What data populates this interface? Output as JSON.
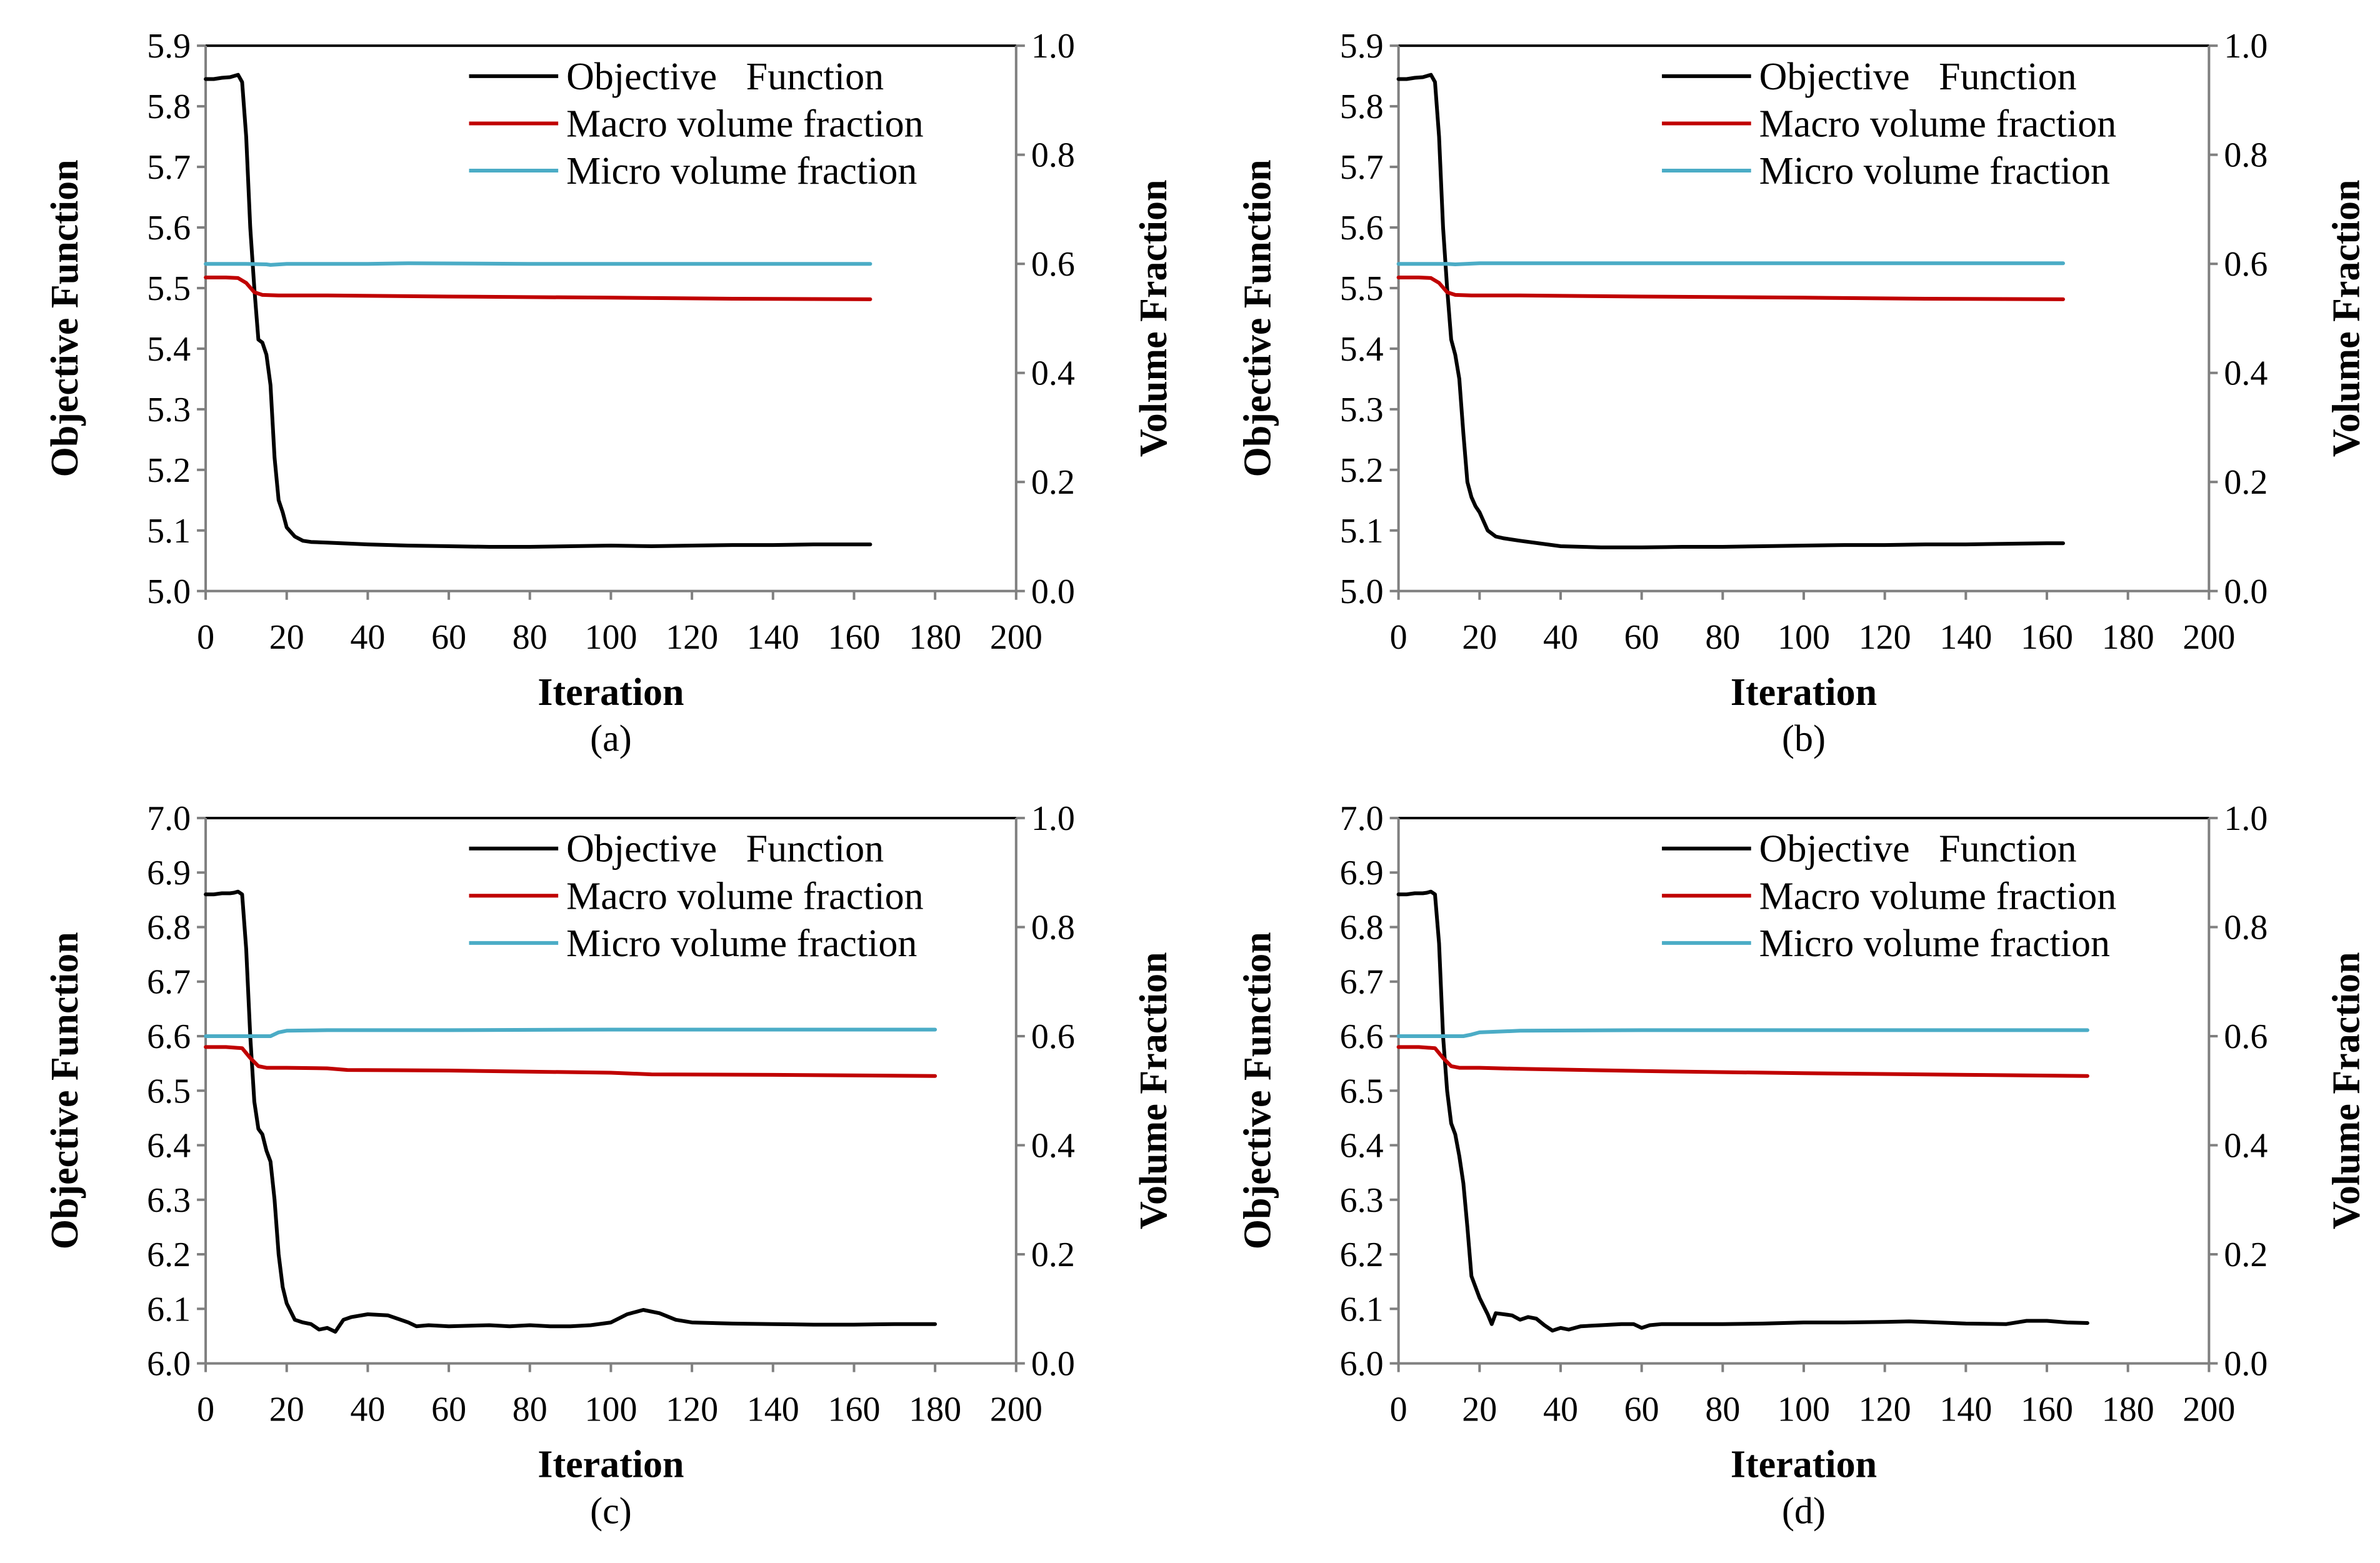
{
  "chart_data": [
    {
      "type": "line",
      "caption": "(a)",
      "xlabel": "Iteration",
      "ylabel": "Objective Function",
      "y2label": "Volume Fraction",
      "xlim": [
        0,
        200
      ],
      "ylim": [
        5.0,
        5.9
      ],
      "y2lim": [
        0.0,
        1.0
      ],
      "x_ticks": [
        "0",
        "20",
        "40",
        "60",
        "80",
        "100",
        "120",
        "140",
        "160",
        "180",
        "200"
      ],
      "y_ticks": [
        "5.0",
        "5.1",
        "5.2",
        "5.3",
        "5.4",
        "5.5",
        "5.6",
        "5.7",
        "5.8",
        "5.9"
      ],
      "y2_ticks": [
        "0.0",
        "0.2",
        "0.4",
        "0.6",
        "0.8",
        "1.0"
      ],
      "grid": false,
      "legend_position": "top-right",
      "series": [
        {
          "name": "Objective   Function",
          "color": "#000000",
          "axis": "left",
          "x": [
            0,
            2,
            4,
            6,
            7,
            8,
            9,
            10,
            11,
            12,
            13,
            14,
            15,
            16,
            17,
            18,
            19,
            20,
            22,
            24,
            26,
            30,
            40,
            50,
            60,
            70,
            80,
            90,
            100,
            110,
            120,
            130,
            140,
            150,
            160,
            164
          ],
          "y": [
            5.845,
            5.845,
            5.847,
            5.848,
            5.85,
            5.852,
            5.84,
            5.75,
            5.6,
            5.5,
            5.415,
            5.41,
            5.39,
            5.34,
            5.22,
            5.15,
            5.13,
            5.105,
            5.09,
            5.083,
            5.081,
            5.08,
            5.077,
            5.075,
            5.074,
            5.073,
            5.073,
            5.074,
            5.075,
            5.074,
            5.075,
            5.076,
            5.076,
            5.077,
            5.077,
            5.077
          ]
        },
        {
          "name": "Macro volume fraction",
          "color": "#c00000",
          "axis": "right",
          "x": [
            0,
            5,
            8,
            10,
            12,
            14,
            18,
            30,
            60,
            100,
            130,
            164
          ],
          "y": [
            0.575,
            0.575,
            0.574,
            0.565,
            0.548,
            0.543,
            0.542,
            0.542,
            0.54,
            0.538,
            0.536,
            0.535
          ]
        },
        {
          "name": "Micro volume fraction",
          "color": "#4bacc6",
          "axis": "right",
          "x": [
            0,
            10,
            15,
            16,
            20,
            40,
            50,
            80,
            120,
            164
          ],
          "y": [
            0.6,
            0.6,
            0.599,
            0.598,
            0.6,
            0.6,
            0.601,
            0.6,
            0.6,
            0.6
          ]
        }
      ]
    },
    {
      "type": "line",
      "caption": "(b)",
      "xlabel": "Iteration",
      "ylabel": "Objective Function",
      "y2label": "Volume Fraction",
      "xlim": [
        0,
        200
      ],
      "ylim": [
        5.0,
        5.9
      ],
      "y2lim": [
        0.0,
        1.0
      ],
      "x_ticks": [
        "0",
        "20",
        "40",
        "60",
        "80",
        "100",
        "120",
        "140",
        "160",
        "180",
        "200"
      ],
      "y_ticks": [
        "5.0",
        "5.1",
        "5.2",
        "5.3",
        "5.4",
        "5.5",
        "5.6",
        "5.7",
        "5.8",
        "5.9"
      ],
      "y2_ticks": [
        "0.0",
        "0.2",
        "0.4",
        "0.6",
        "0.8",
        "1.0"
      ],
      "grid": false,
      "legend_position": "top-right",
      "series": [
        {
          "name": "Objective   Function",
          "color": "#000000",
          "axis": "left",
          "x": [
            0,
            2,
            4,
            6,
            7,
            8,
            9,
            10,
            11,
            12,
            13,
            14,
            15,
            16,
            17,
            18,
            19,
            20,
            22,
            24,
            26,
            30,
            40,
            50,
            60,
            70,
            80,
            90,
            100,
            110,
            120,
            130,
            140,
            150,
            160,
            164
          ],
          "y": [
            5.845,
            5.845,
            5.847,
            5.848,
            5.85,
            5.852,
            5.84,
            5.75,
            5.6,
            5.5,
            5.415,
            5.39,
            5.35,
            5.26,
            5.18,
            5.155,
            5.14,
            5.13,
            5.1,
            5.09,
            5.087,
            5.083,
            5.074,
            5.072,
            5.072,
            5.073,
            5.073,
            5.074,
            5.075,
            5.076,
            5.076,
            5.077,
            5.077,
            5.078,
            5.079,
            5.079
          ]
        },
        {
          "name": "Macro volume fraction",
          "color": "#c00000",
          "axis": "right",
          "x": [
            0,
            5,
            8,
            10,
            12,
            14,
            18,
            30,
            60,
            100,
            130,
            164
          ],
          "y": [
            0.575,
            0.575,
            0.574,
            0.565,
            0.548,
            0.543,
            0.542,
            0.542,
            0.54,
            0.538,
            0.536,
            0.535
          ]
        },
        {
          "name": "Micro volume fraction",
          "color": "#4bacc6",
          "axis": "right",
          "x": [
            0,
            10,
            12,
            14,
            20,
            40,
            80,
            120,
            164
          ],
          "y": [
            0.6,
            0.6,
            0.6,
            0.599,
            0.601,
            0.601,
            0.601,
            0.601,
            0.601
          ]
        }
      ]
    },
    {
      "type": "line",
      "caption": "(c)",
      "xlabel": "Iteration",
      "ylabel": "Objective Function",
      "y2label": "Volume Fraction",
      "xlim": [
        0,
        200
      ],
      "ylim": [
        6.0,
        7.0
      ],
      "y2lim": [
        0.0,
        1.0
      ],
      "x_ticks": [
        "0",
        "20",
        "40",
        "60",
        "80",
        "100",
        "120",
        "140",
        "160",
        "180",
        "200"
      ],
      "y_ticks": [
        "6.0",
        "6.1",
        "6.2",
        "6.3",
        "6.4",
        "6.5",
        "6.6",
        "6.7",
        "6.8",
        "6.9",
        "7.0"
      ],
      "y2_ticks": [
        "0.0",
        "0.2",
        "0.4",
        "0.6",
        "0.8",
        "1.0"
      ],
      "grid": false,
      "legend_position": "top-right",
      "series": [
        {
          "name": "Objective   Function",
          "color": "#000000",
          "axis": "left",
          "x": [
            0,
            2,
            4,
            6,
            7,
            8,
            9,
            10,
            11,
            12,
            13,
            14,
            15,
            16,
            17,
            18,
            19,
            20,
            22,
            24,
            26,
            28,
            30,
            32,
            34,
            36,
            40,
            45,
            50,
            52,
            55,
            60,
            70,
            75,
            80,
            85,
            90,
            95,
            100,
            104,
            108,
            112,
            116,
            120,
            130,
            140,
            150,
            160,
            170,
            180
          ],
          "y": [
            6.86,
            6.86,
            6.862,
            6.862,
            6.863,
            6.865,
            6.86,
            6.76,
            6.6,
            6.48,
            6.43,
            6.42,
            6.39,
            6.37,
            6.3,
            6.2,
            6.14,
            6.11,
            6.08,
            6.075,
            6.072,
            6.062,
            6.065,
            6.058,
            6.08,
            6.085,
            6.09,
            6.088,
            6.075,
            6.068,
            6.07,
            6.068,
            6.07,
            6.068,
            6.07,
            6.068,
            6.068,
            6.07,
            6.075,
            6.09,
            6.098,
            6.092,
            6.08,
            6.075,
            6.073,
            6.072,
            6.071,
            6.071,
            6.072,
            6.072
          ]
        },
        {
          "name": "Macro volume fraction",
          "color": "#c00000",
          "axis": "right",
          "x": [
            0,
            5,
            9,
            11,
            13,
            15,
            20,
            30,
            35,
            60,
            100,
            110,
            140,
            180
          ],
          "y": [
            0.58,
            0.58,
            0.578,
            0.56,
            0.545,
            0.542,
            0.542,
            0.541,
            0.538,
            0.537,
            0.533,
            0.53,
            0.529,
            0.527
          ]
        },
        {
          "name": "Micro volume fraction",
          "color": "#4bacc6",
          "axis": "right",
          "x": [
            0,
            14,
            16,
            18,
            20,
            30,
            60,
            100,
            140,
            180
          ],
          "y": [
            0.6,
            0.6,
            0.6,
            0.607,
            0.61,
            0.611,
            0.611,
            0.612,
            0.612,
            0.612
          ]
        }
      ]
    },
    {
      "type": "line",
      "caption": "(d)",
      "xlabel": "Iteration",
      "ylabel": "Objective Function",
      "y2label": "Volume Fraction",
      "xlim": [
        0,
        200
      ],
      "ylim": [
        6.0,
        7.0
      ],
      "y2lim": [
        0.0,
        1.0
      ],
      "x_ticks": [
        "0",
        "20",
        "40",
        "60",
        "80",
        "100",
        "120",
        "140",
        "160",
        "180",
        "200"
      ],
      "y_ticks": [
        "6.0",
        "6.1",
        "6.2",
        "6.3",
        "6.4",
        "6.5",
        "6.6",
        "6.7",
        "6.8",
        "6.9",
        "7.0"
      ],
      "y2_ticks": [
        "0.0",
        "0.2",
        "0.4",
        "0.6",
        "0.8",
        "1.0"
      ],
      "grid": false,
      "legend_position": "top-right",
      "series": [
        {
          "name": "Objective   Function",
          "color": "#000000",
          "axis": "left",
          "x": [
            0,
            2,
            4,
            6,
            7,
            8,
            9,
            10,
            11,
            12,
            13,
            14,
            15,
            16,
            17,
            18,
            19,
            20,
            21,
            22,
            23,
            24,
            26,
            28,
            30,
            32,
            34,
            36,
            38,
            40,
            42,
            45,
            50,
            55,
            58,
            60,
            62,
            65,
            70,
            80,
            90,
            100,
            110,
            120,
            126,
            130,
            140,
            150,
            155,
            160,
            165,
            170
          ],
          "y": [
            6.86,
            6.86,
            6.862,
            6.862,
            6.863,
            6.865,
            6.86,
            6.77,
            6.6,
            6.5,
            6.44,
            6.42,
            6.38,
            6.33,
            6.25,
            6.16,
            6.14,
            6.12,
            6.105,
            6.09,
            6.072,
            6.092,
            6.09,
            6.088,
            6.08,
            6.085,
            6.082,
            6.07,
            6.06,
            6.065,
            6.062,
            6.068,
            6.07,
            6.072,
            6.072,
            6.065,
            6.07,
            6.072,
            6.072,
            6.072,
            6.073,
            6.075,
            6.075,
            6.076,
            6.077,
            6.076,
            6.073,
            6.072,
            6.078,
            6.078,
            6.075,
            6.074
          ]
        },
        {
          "name": "Macro volume fraction",
          "color": "#c00000",
          "axis": "right",
          "x": [
            0,
            5,
            9,
            11,
            13,
            15,
            20,
            30,
            60,
            100,
            140,
            170
          ],
          "y": [
            0.58,
            0.58,
            0.578,
            0.56,
            0.545,
            0.542,
            0.542,
            0.54,
            0.536,
            0.532,
            0.529,
            0.527
          ]
        },
        {
          "name": "Micro volume fraction",
          "color": "#4bacc6",
          "axis": "right",
          "x": [
            0,
            14,
            16,
            18,
            20,
            30,
            60,
            100,
            140,
            170
          ],
          "y": [
            0.6,
            0.6,
            0.6,
            0.603,
            0.607,
            0.61,
            0.611,
            0.611,
            0.611,
            0.611
          ]
        }
      ]
    }
  ]
}
